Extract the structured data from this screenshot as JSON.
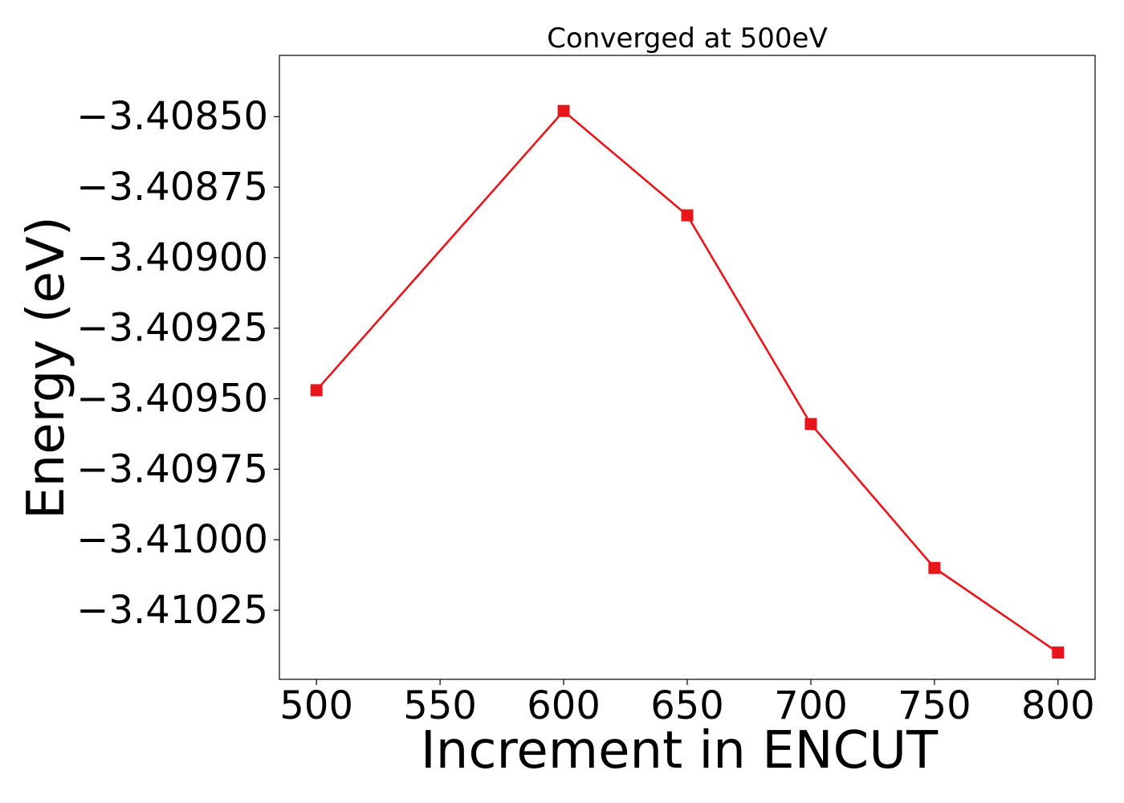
{
  "chart_data": {
    "type": "line",
    "title": "Converged at 500eV",
    "xlabel": "Increment in ENCUT",
    "ylabel": "Energy (eV)",
    "x": [
      500,
      600,
      650,
      700,
      750,
      800
    ],
    "series": [
      {
        "values": [
          -3.40947,
          -3.40848,
          -3.40885,
          -3.40959,
          -3.4101,
          -3.4104
        ],
        "color": "#e8151b",
        "marker": "square"
      }
    ],
    "xticks": [
      500,
      550,
      600,
      650,
      700,
      750,
      800
    ],
    "xtick_labels": [
      "500",
      "550",
      "600",
      "650",
      "700",
      "750",
      "800"
    ],
    "yticks": [
      -3.4085,
      -3.40875,
      -3.409,
      -3.40925,
      -3.4095,
      -3.40975,
      -3.41,
      -3.41025
    ],
    "ytick_labels": [
      "−3.40850",
      "−3.40875",
      "−3.40900",
      "−3.40925",
      "−3.40950",
      "−3.40975",
      "−3.41000",
      "−3.41025"
    ],
    "xlim": [
      485,
      815
    ],
    "ylim": [
      -3.410495,
      -3.408283
    ],
    "grid": false,
    "legend": "none"
  }
}
